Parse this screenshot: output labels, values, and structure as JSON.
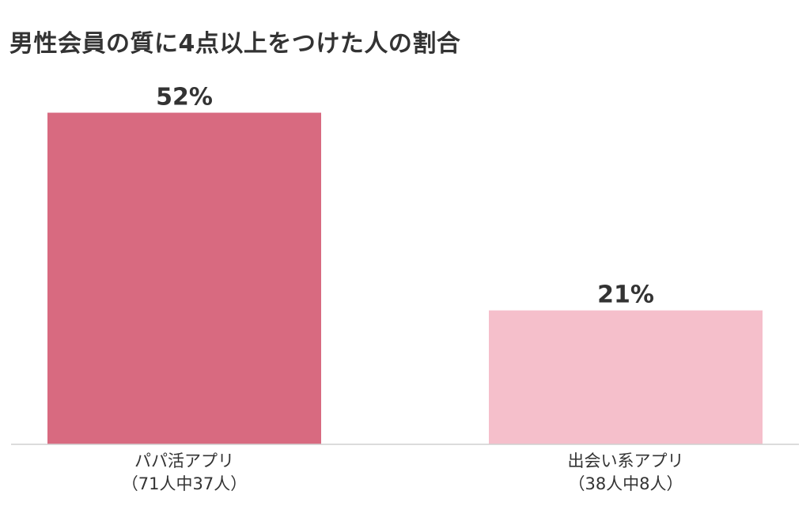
{
  "chart_data": {
    "type": "bar",
    "title": "男性会員の質に4点以上をつけた人の割合",
    "categories": [
      {
        "label": "パパ活アプリ",
        "sublabel": "（71人中37人）"
      },
      {
        "label": "出会い系アプリ",
        "sublabel": "（38人中8人）"
      }
    ],
    "values": [
      52,
      21
    ],
    "value_labels": [
      "52%",
      "21%"
    ],
    "colors": [
      "#d86a80",
      "#f5bfcb"
    ],
    "ylim": [
      0,
      60
    ],
    "grid": false,
    "legend": "none"
  }
}
